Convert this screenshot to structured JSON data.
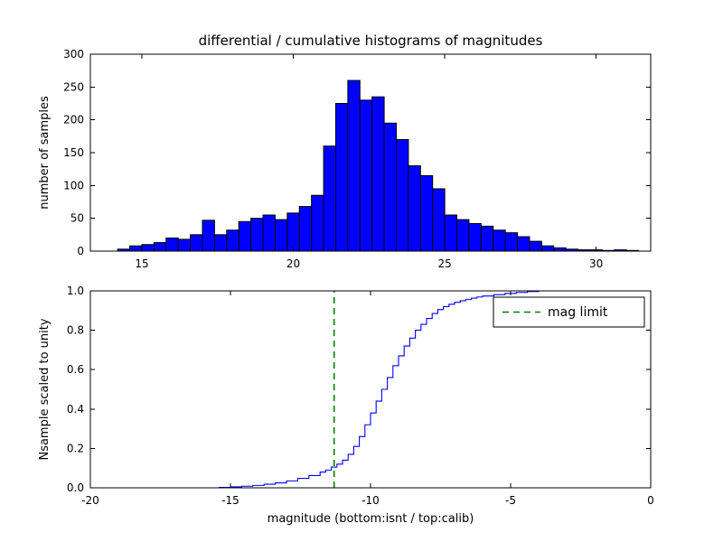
{
  "chart_data": [
    {
      "type": "bar",
      "name": "differential-histogram",
      "title": "differential / cumulative histograms of magnitudes",
      "ylabel": "number of samples",
      "xlim": [
        13.3,
        31.8
      ],
      "ylim": [
        0,
        300
      ],
      "xtick_values": [
        15,
        20,
        25,
        30
      ],
      "xtick_labels": [
        "15",
        "20",
        "25",
        "30"
      ],
      "ytick_values": [
        0,
        50,
        100,
        150,
        200,
        250,
        300
      ],
      "ytick_labels": [
        "0",
        "50",
        "100",
        "150",
        "200",
        "250",
        "300"
      ],
      "bar_color": "#0000ff",
      "bar_edge_color": "#000000",
      "bin_width": 0.4,
      "bin_lefts": [
        14.2,
        14.6,
        15.0,
        15.4,
        15.8,
        16.2,
        16.6,
        17.0,
        17.4,
        17.8,
        18.2,
        18.6,
        19.0,
        19.4,
        19.8,
        20.2,
        20.6,
        21.0,
        21.4,
        21.8,
        22.2,
        22.6,
        23.0,
        23.4,
        23.8,
        24.2,
        24.6,
        25.0,
        25.4,
        25.8,
        26.2,
        26.6,
        27.0,
        27.4,
        27.8,
        28.2,
        28.6,
        29.0,
        29.4,
        29.8,
        30.2,
        30.6,
        31.0
      ],
      "counts": [
        3,
        8,
        10,
        13,
        20,
        18,
        25,
        47,
        25,
        32,
        45,
        50,
        55,
        48,
        58,
        68,
        85,
        160,
        225,
        260,
        230,
        235,
        195,
        170,
        130,
        115,
        95,
        55,
        48,
        42,
        38,
        32,
        28,
        22,
        15,
        8,
        5,
        3,
        2,
        2,
        1,
        2,
        1
      ],
      "grid": false
    },
    {
      "type": "line",
      "name": "cumulative-histogram",
      "xlabel": "magnitude (bottom:isnt / top:calib)",
      "ylabel": "Nsample scaled to unity",
      "xlim": [
        -20,
        0
      ],
      "ylim": [
        0.0,
        1.0
      ],
      "xtick_values": [
        -20,
        -15,
        -10,
        -5,
        0
      ],
      "xtick_labels": [
        "-20",
        "-15",
        "-10",
        "-5",
        "0"
      ],
      "ytick_values": [
        0.0,
        0.2,
        0.4,
        0.6,
        0.8,
        1.0
      ],
      "ytick_labels": [
        "0.0",
        "0.2",
        "0.4",
        "0.6",
        "0.8",
        "1.0"
      ],
      "line_color": "#0000ff",
      "step": "post",
      "x": [
        -15.8,
        -15.4,
        -15.0,
        -14.6,
        -14.2,
        -13.8,
        -13.4,
        -13.0,
        -12.6,
        -12.2,
        -11.8,
        -11.6,
        -11.4,
        -11.2,
        -11.0,
        -10.8,
        -10.6,
        -10.4,
        -10.2,
        -10.0,
        -9.8,
        -9.6,
        -9.4,
        -9.2,
        -9.0,
        -8.8,
        -8.6,
        -8.4,
        -8.2,
        -8.0,
        -7.8,
        -7.6,
        -7.4,
        -7.2,
        -7.0,
        -6.8,
        -6.6,
        -6.4,
        -6.2,
        -6.0,
        -5.6,
        -5.2,
        -4.8,
        -4.4,
        -4.0,
        0.0
      ],
      "y": [
        0.0,
        0.002,
        0.005,
        0.008,
        0.012,
        0.018,
        0.025,
        0.035,
        0.048,
        0.062,
        0.08,
        0.09,
        0.105,
        0.12,
        0.14,
        0.17,
        0.21,
        0.26,
        0.32,
        0.38,
        0.44,
        0.5,
        0.56,
        0.62,
        0.67,
        0.72,
        0.76,
        0.8,
        0.83,
        0.86,
        0.885,
        0.905,
        0.92,
        0.932,
        0.942,
        0.95,
        0.957,
        0.963,
        0.969,
        0.974,
        0.981,
        0.987,
        0.992,
        0.997,
        1.0,
        1.0
      ],
      "mag_limit_line": {
        "x": -11.3,
        "color": "#008000",
        "linestyle": "dashed"
      },
      "legend": {
        "location": "upper right",
        "entries": [
          {
            "label": "mag limit",
            "color": "#008000",
            "linestyle": "dashed"
          }
        ]
      },
      "grid": false
    }
  ],
  "colors": {
    "background": "#ffffff",
    "axes": "#000000",
    "bar_fill": "#0000ff",
    "mag_limit": "#008000"
  }
}
